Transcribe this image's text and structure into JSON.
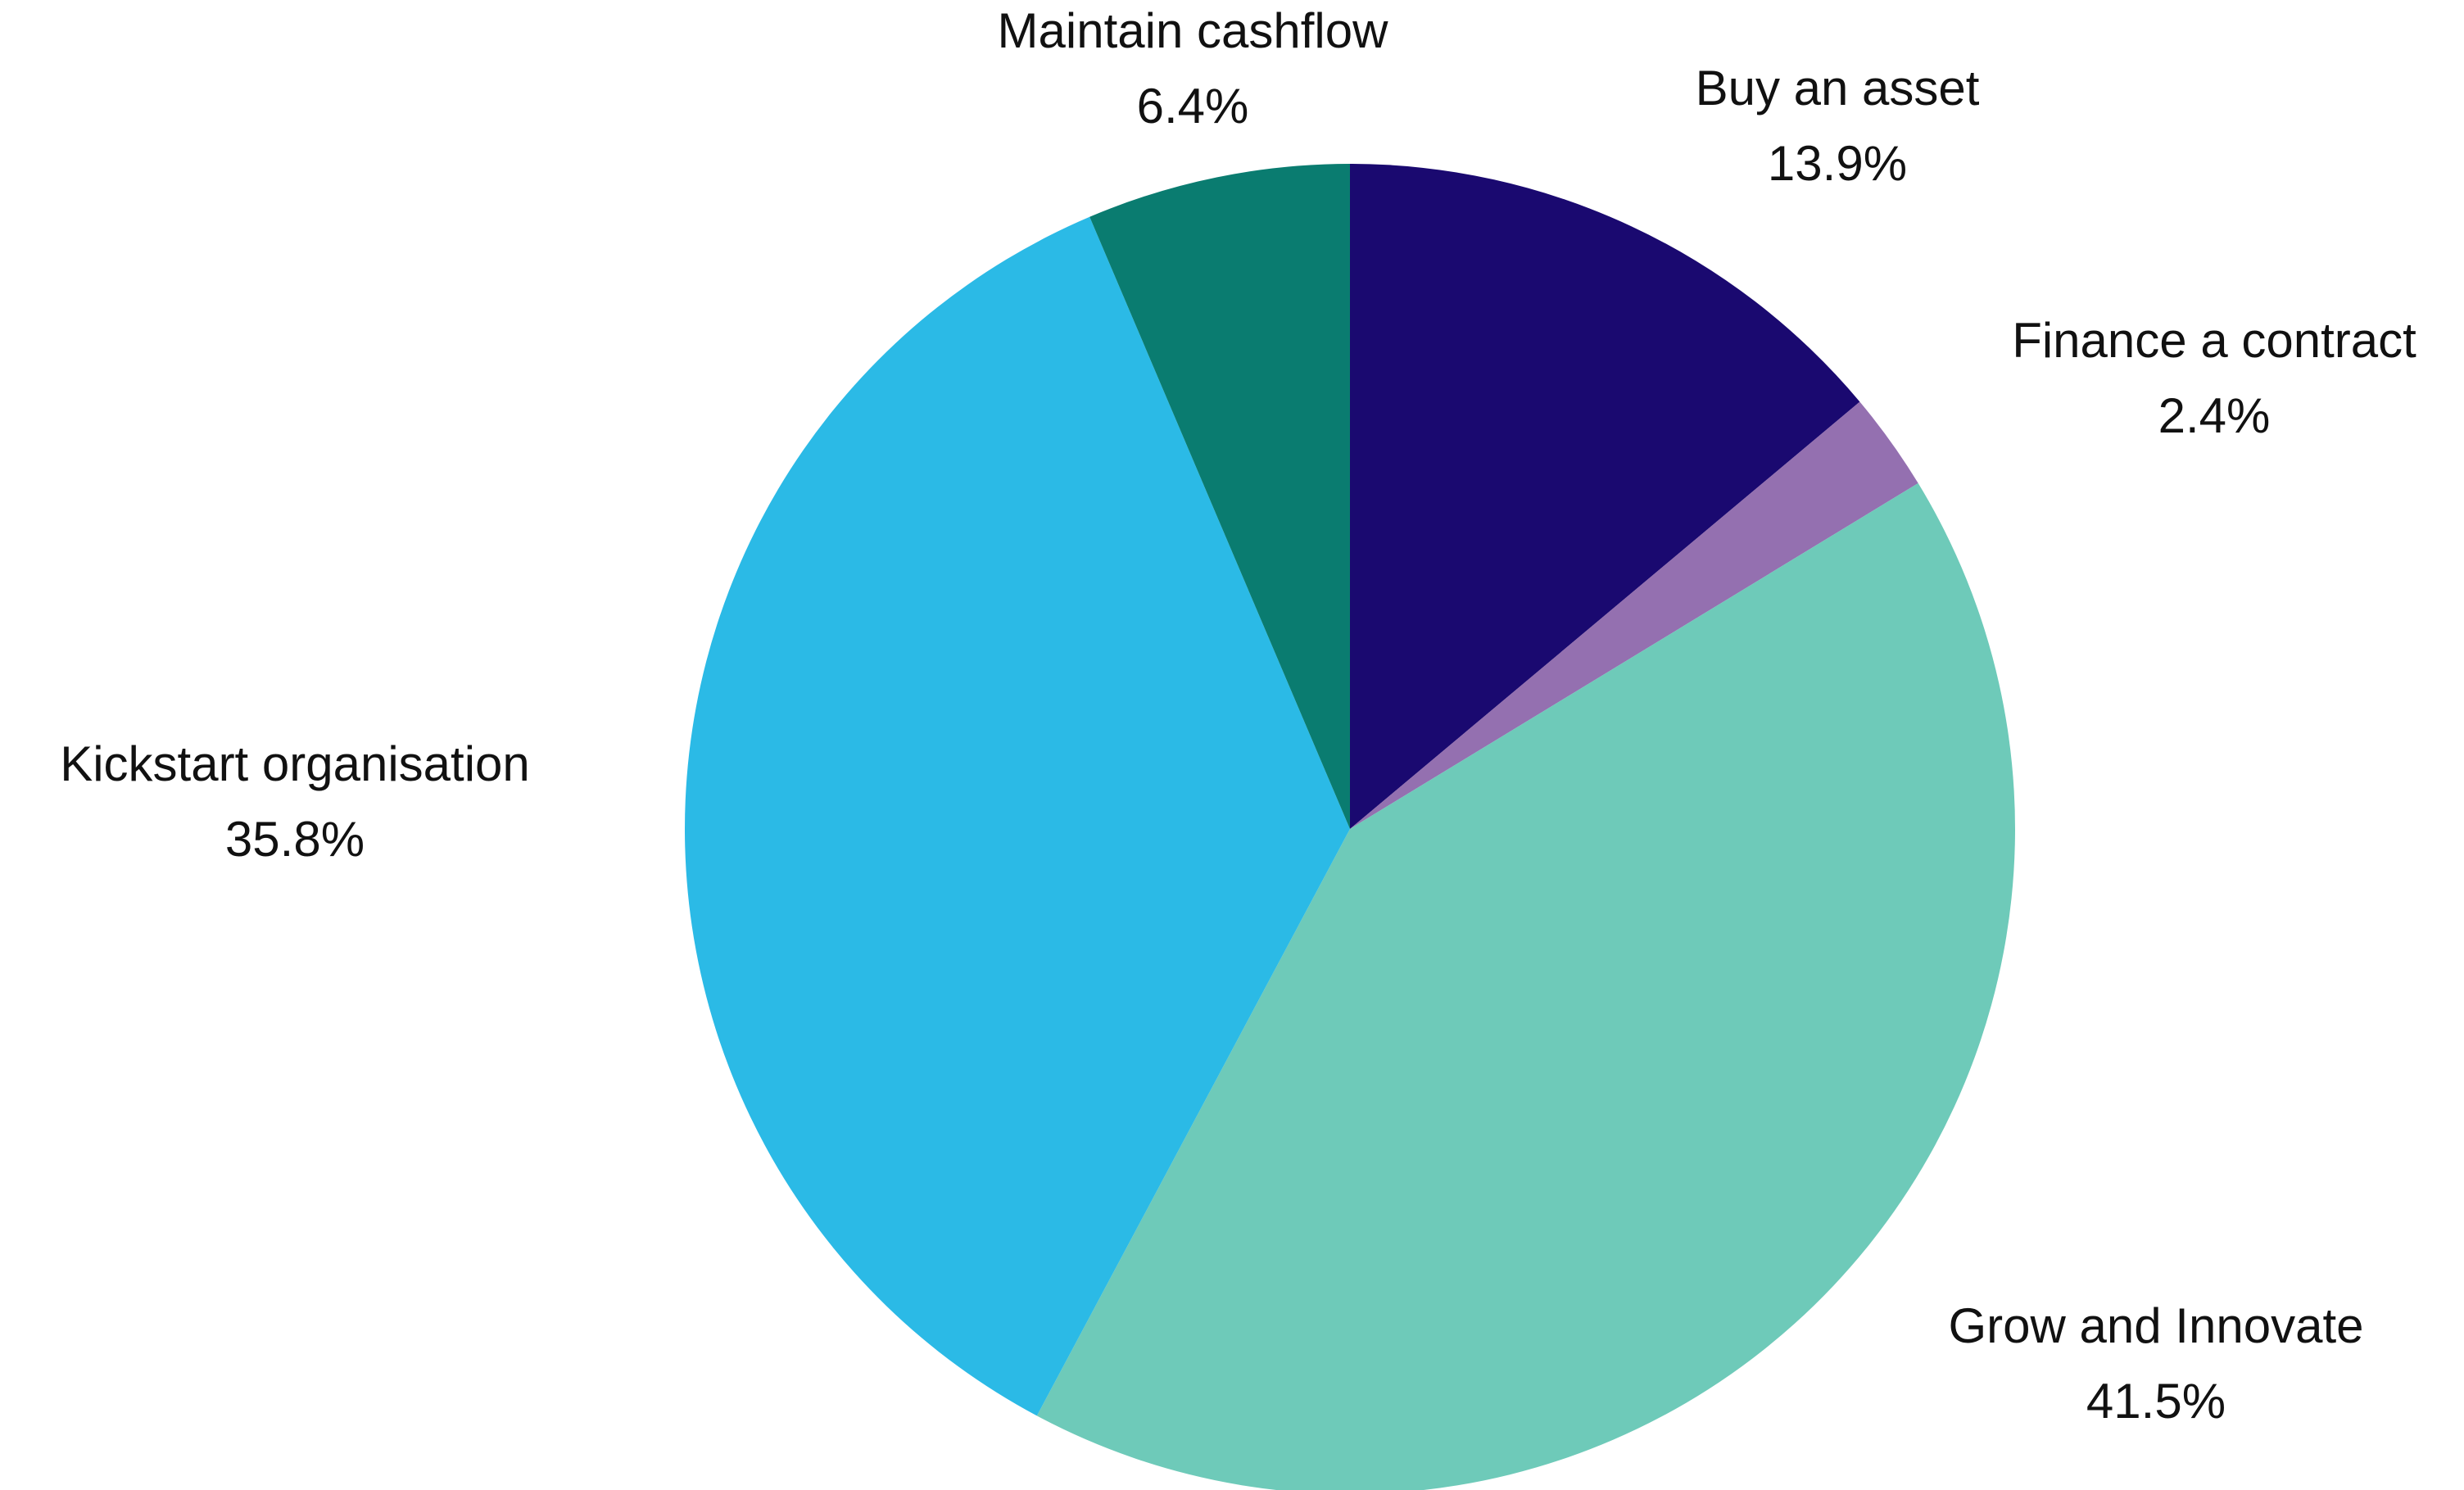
{
  "chart_data": {
    "type": "pie",
    "title": "",
    "start_angle_deg": 0,
    "direction": "clockwise",
    "slices": [
      {
        "label": "Buy an asset",
        "value": 13.9,
        "value_label": "13.9%",
        "color": "#1a0970"
      },
      {
        "label": "Finance a contract",
        "value": 2.4,
        "value_label": "2.4%",
        "color": "#9470b0"
      },
      {
        "label": "Grow and Innovate",
        "value": 41.5,
        "value_label": "41.5%",
        "color": "#6ecab9"
      },
      {
        "label": "Kickstart organisation",
        "value": 35.8,
        "value_label": "35.8%",
        "color": "#2bbae6"
      },
      {
        "label": "Maintain cashflow",
        "value": 6.4,
        "value_label": "6.4%",
        "color": "#0a7c70"
      }
    ],
    "legend": "none",
    "labels_position": "outside"
  }
}
